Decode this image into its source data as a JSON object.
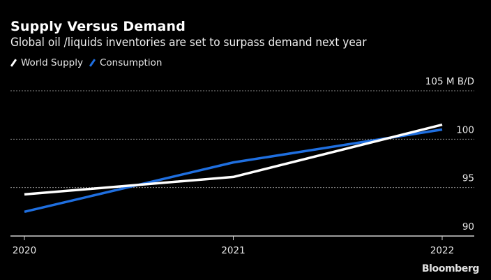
{
  "chart_data": {
    "type": "line",
    "title": "Supply Versus Demand",
    "subtitle": "Global oil /liquids inventories are set to surpass demand next year",
    "xlabel": "",
    "ylabel": "M B/D",
    "x": [
      2020,
      2021,
      2022
    ],
    "x_tick_labels": [
      "2020",
      "2021",
      "2022"
    ],
    "y_ticks": [
      90,
      95,
      100,
      105
    ],
    "y_tick_labels": [
      "90",
      "95",
      "100",
      "105 M B/D"
    ],
    "ylim": [
      90,
      105
    ],
    "grid": true,
    "legend_position": "top-left",
    "series": [
      {
        "name": "World Supply",
        "color": "#ffffff",
        "values": [
          94.3,
          96.1,
          101.5
        ]
      },
      {
        "name": "Consumption",
        "color": "#1f6fe0",
        "values": [
          92.5,
          97.6,
          101.0
        ]
      }
    ]
  },
  "source_brand": "Bloomberg"
}
